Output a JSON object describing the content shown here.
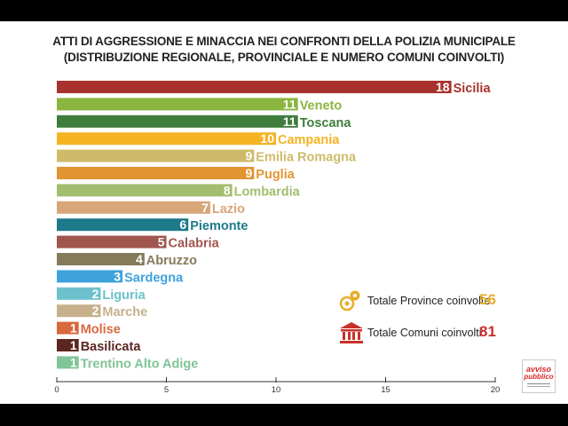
{
  "title_lines": [
    "ATTI DI AGGRESSIONE E MINACCIA NEI CONFRONTI DELLA POLIZIA MUNICIPALE",
    "(DISTRIBUZIONE REGIONALE, PROVINCIALE E NUMERO COMUNI COINVOLTI)"
  ],
  "chart_data": {
    "type": "bar",
    "orientation": "horizontal",
    "title": "ATTI DI AGGRESSIONE E MINACCIA NEI CONFRONTI DELLA POLIZIA MUNICIPALE (DISTRIBUZIONE REGIONALE, PROVINCIALE E NUMERO COMUNI COINVOLTI)",
    "categories": [
      "Sicilia",
      "Veneto",
      "Toscana",
      "Campania",
      "Emilia Romagna",
      "Puglia",
      "Lombardia",
      "Lazio",
      "Piemonte",
      "Calabria",
      "Abruzzo",
      "Sardegna",
      "Liguria",
      "Marche",
      "Molise",
      "Basilicata",
      "Trentino Alto Adige"
    ],
    "values": [
      18,
      11,
      11,
      10,
      9,
      9,
      8,
      7,
      6,
      5,
      4,
      3,
      2,
      2,
      1,
      1,
      1
    ],
    "colors": [
      "#a8322d",
      "#8ab63f",
      "#3e7d3c",
      "#f4b321",
      "#cdbb6a",
      "#e19432",
      "#a3bd6f",
      "#d9a679",
      "#1d7a8a",
      "#a0554d",
      "#847b5a",
      "#3ea2db",
      "#6dc1cc",
      "#c6b08b",
      "#d9683e",
      "#5b2620",
      "#80c497"
    ],
    "xlim": [
      0,
      20
    ],
    "x_ticks": [
      "0",
      "5",
      "10",
      "15",
      "20"
    ],
    "grid": false
  },
  "legend": {
    "province": {
      "label": "Totale Province coinvolte",
      "value": "56",
      "icon": "map-pin-icon",
      "color": "#e8ad2a"
    },
    "comuni": {
      "label": "Totale Comuni coinvolti",
      "value": "81",
      "icon": "town-hall-icon",
      "color": "#c8302a"
    }
  },
  "logo": {
    "line1": "avviso",
    "line2": "pubblico"
  }
}
